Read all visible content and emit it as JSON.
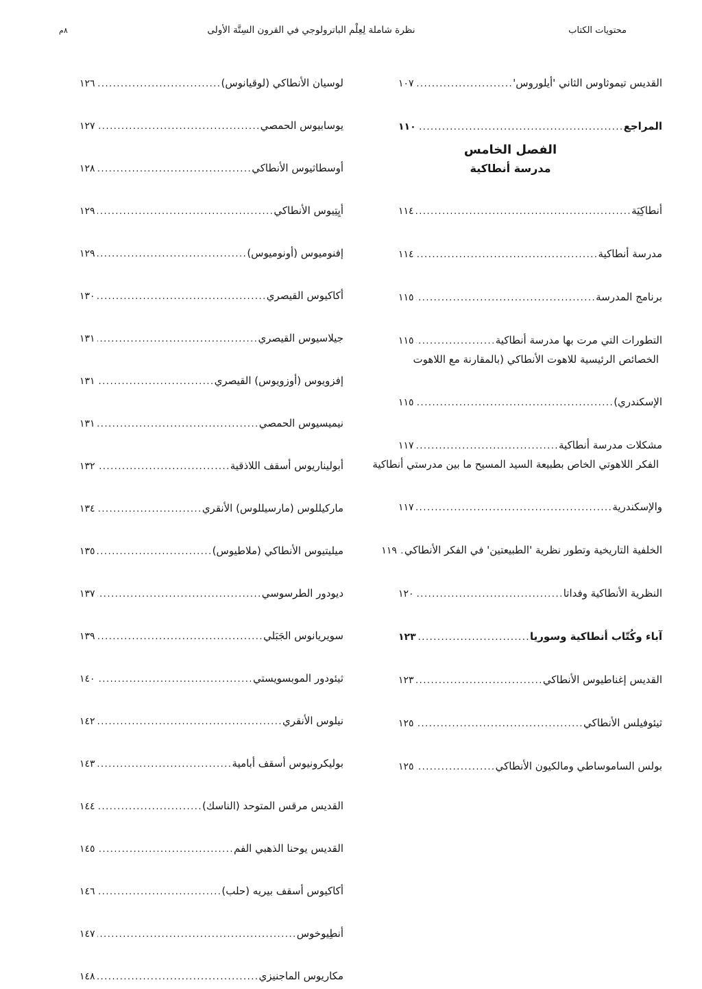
{
  "page": {
    "background": "#ffffff",
    "text_color": "#161616"
  },
  "header": {
    "right_label": "محتويات الكتاب",
    "center_title": "نظرة شاملة لِعِلْم الباترولوجي في القرون السِتَّة الأولى",
    "left_page_number": "٨م"
  },
  "right_column": {
    "rows": [
      {
        "type": "entry",
        "title": "القديس تيموثاوس الثاني 'أيلوروس'",
        "page": "١٠٧"
      },
      {
        "type": "entry",
        "title": "المراجع",
        "page": "١١٠",
        "bold": true,
        "cls": "sp-refs"
      },
      {
        "type": "h1",
        "title": "الفصل الخامس",
        "page": ""
      },
      {
        "type": "h2",
        "title": "مدرسة أنطاكية",
        "page": ""
      },
      {
        "type": "entry",
        "title": "أنطاكِيَة",
        "page": "١١٤"
      },
      {
        "type": "entry",
        "title": "مدرسة أنطاكية",
        "page": "١١٤"
      },
      {
        "type": "entry",
        "title": "برنامج المدرسة",
        "page": "١١٥"
      },
      {
        "type": "entry",
        "title": "التطورات التي مرت بها مدرسة أنطاكية",
        "page": "١١٥"
      },
      {
        "type": "wrap",
        "title": "الخصائص الرئيسية للاهوت الأنطاكي (بالمقارنة مع اللاهوت",
        "page": ""
      },
      {
        "type": "entry",
        "title": "الإسكندري) ",
        "page": "١١٥"
      },
      {
        "type": "entry",
        "title": "مشكلات مدرسة أنطاكية",
        "page": "١١٧"
      },
      {
        "type": "wrap",
        "title": "الفكر اللاهوتي الخاص بطبيعة السيد المسيح ما بين مدرستي أنطاكية",
        "page": ""
      },
      {
        "type": "entry",
        "title": "والإسكندرية",
        "page": "١١٧"
      },
      {
        "type": "entry",
        "title": "الخلفية التاريخية وتطور نظرية 'الطبيعتين' في الفكر الأنطاكي",
        "page": "١١٩"
      },
      {
        "type": "entry",
        "title": "النظرية الأنطاكية وفداتا",
        "page": "١٢٠"
      },
      {
        "type": "entry",
        "title": "آباء وكُتّاب أنطاكية وسوريا",
        "page": "١٢٣",
        "bold": true,
        "cls": "sp-fathers"
      },
      {
        "type": "entry",
        "title": "القديس إغناطيوس الأنطاكي",
        "page": "١٢٣"
      },
      {
        "type": "entry",
        "title": "ثيئوفيلس الأنطاكي",
        "page": "١٢٥"
      },
      {
        "type": "entry",
        "title": "بولس الساموساطي ومالكيون الأنطاكي",
        "page": "١٢٥"
      }
    ]
  },
  "left_column": {
    "rows": [
      {
        "type": "entry",
        "title": "لوسيان الأنطاكي (لوقيانوس) ",
        "page": "١٢٦"
      },
      {
        "type": "entry",
        "title": "يوسابيوس الحمصي",
        "page": "١٢٧"
      },
      {
        "type": "entry",
        "title": "أوسطاثيوس الأنطاكي",
        "page": "١٢٨"
      },
      {
        "type": "entry",
        "title": "أيِتِيوس الأنطاكي",
        "page": "١٢٩"
      },
      {
        "type": "entry",
        "title": "إفنوميوس (أونوميوس) ",
        "page": "١٢٩"
      },
      {
        "type": "entry",
        "title": "أكاكيوس القيصري",
        "page": "١٣٠"
      },
      {
        "type": "entry",
        "title": "جيلاسيوس القيصري",
        "page": "١٣١"
      },
      {
        "type": "entry",
        "title": "إفزويوس (أوزويوس) القيصري",
        "page": "١٣١"
      },
      {
        "type": "entry",
        "title": "نيميسيوس الحمصي",
        "page": "١٣١"
      },
      {
        "type": "entry",
        "title": "أبوليناريوس أسقف اللاذقية",
        "page": "١٣٢"
      },
      {
        "type": "entry",
        "title": "ماركيللوس (مارسيللوس) الأنقري",
        "page": "١٣٤"
      },
      {
        "type": "entry",
        "title": "ميليتيوس الأنطاكي (ملاطيوس) ",
        "page": "١٣٥"
      },
      {
        "type": "entry",
        "title": "ديودور الطرسوسي",
        "page": "١٣٧"
      },
      {
        "type": "entry",
        "title": "سويريانوس الجَبَلي",
        "page": "١٣٩"
      },
      {
        "type": "entry",
        "title": "ثيئودور الموبسويستي",
        "page": "١٤٠"
      },
      {
        "type": "entry",
        "title": "نيلوس الأنقري",
        "page": "١٤٢"
      },
      {
        "type": "entry",
        "title": "بوليكرونيوس أسقف أبامية",
        "page": "١٤٣"
      },
      {
        "type": "entry",
        "title": "القديس مرقس المتوحد (الناسك) ",
        "page": "١٤٤"
      },
      {
        "type": "entry",
        "title": "القديس يوحنا الذهبي الفم",
        "page": "١٤٥"
      },
      {
        "type": "entry",
        "title": "أكاكيوس أسقف بيريه (حلب) ",
        "page": "١٤٦"
      },
      {
        "type": "entry",
        "title": "أنطِيوخوس",
        "page": "١٤٧"
      },
      {
        "type": "entry",
        "title": "مكاريوس الماجنيزي",
        "page": "١٤٨"
      }
    ]
  }
}
